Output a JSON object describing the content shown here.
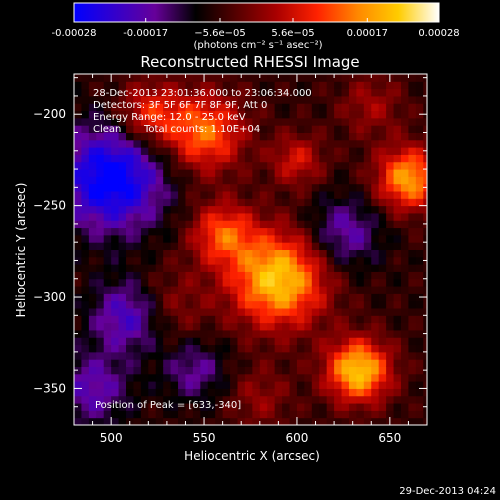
{
  "colorbar": {
    "tick_labels": [
      "-0.00028",
      "-0.00017",
      "−5.6e−05",
      "5.6e−05",
      "0.00017",
      "0.00028"
    ],
    "tick_values": [
      -0.00028,
      -0.00017,
      -5.6e-05,
      5.6e-05,
      0.00017,
      0.00028
    ],
    "range": [
      -0.00028,
      0.00028
    ],
    "unit_label": "(photons cm⁻² s⁻¹ asec⁻²)",
    "colors": [
      "#0000ff",
      "#3300cc",
      "#660099",
      "#000000",
      "#550000",
      "#aa0000",
      "#ff2200",
      "#ff8800",
      "#ffcc00",
      "#ffffff"
    ]
  },
  "chart_data": {
    "type": "heatmap",
    "title": "Reconstructed RHESSI Image",
    "xlabel": "Heliocentric X (arcsec)",
    "ylabel": "Heliocentric Y (arcsec)",
    "xlim": [
      480,
      670
    ],
    "ylim": [
      -370,
      -178
    ],
    "x_ticks": [
      500,
      550,
      600,
      650
    ],
    "y_ticks": [
      -200,
      -250,
      -300,
      -350
    ],
    "x_tick_labels": [
      "500",
      "550",
      "600",
      "650"
    ],
    "y_tick_labels": [
      "−200",
      "−250",
      "−300",
      "−350"
    ],
    "pixel_size_arcsec": 4,
    "value_range": [
      -0.00028,
      0.00028
    ],
    "sources": [
      {
        "x": 633,
        "y": -340,
        "amplitude": 0.00028,
        "sigma": 12
      },
      {
        "x": 590,
        "y": -290,
        "amplitude": 0.00028,
        "sigma": 18
      },
      {
        "x": 560,
        "y": -265,
        "amplitude": 0.00017,
        "sigma": 12
      },
      {
        "x": 550,
        "y": -210,
        "amplitude": 0.0002,
        "sigma": 15
      },
      {
        "x": 520,
        "y": -200,
        "amplitude": 0.00015,
        "sigma": 12
      },
      {
        "x": 660,
        "y": -235,
        "amplitude": 0.00024,
        "sigma": 12
      },
      {
        "x": 640,
        "y": -195,
        "amplitude": 8e-05,
        "sigma": 12
      },
      {
        "x": 600,
        "y": -225,
        "amplitude": 0.00012,
        "sigma": 10
      },
      {
        "x": 530,
        "y": -305,
        "amplitude": 8e-05,
        "sigma": 15
      },
      {
        "x": 580,
        "y": -355,
        "amplitude": 7e-05,
        "sigma": 12
      },
      {
        "x": 500,
        "y": -235,
        "amplitude": -0.00024,
        "sigma": 20
      },
      {
        "x": 510,
        "y": -310,
        "amplitude": -0.00016,
        "sigma": 14
      },
      {
        "x": 625,
        "y": -265,
        "amplitude": -0.00012,
        "sigma": 14
      },
      {
        "x": 490,
        "y": -350,
        "amplitude": -0.00012,
        "sigma": 14
      },
      {
        "x": 545,
        "y": -340,
        "amplitude": -0.0001,
        "sigma": 12
      }
    ],
    "peak_marker": {
      "x": 633,
      "y": -340
    }
  },
  "annotations": {
    "time_range": "28-Dec-2013 23:01:36.000 to 23:06:34.000",
    "detectors": "Detectors: 3F 5F 6F 7F 8F 9F, Att 0",
    "energy_range": "Energy Range: 12.0 - 25.0 keV",
    "algorithm": "Clean",
    "total_counts": "Total counts: 1.10E+04",
    "peak_position": "Position of Peak = [633,-340]"
  },
  "footer": {
    "timestamp": "29-Dec-2013 04:24"
  }
}
